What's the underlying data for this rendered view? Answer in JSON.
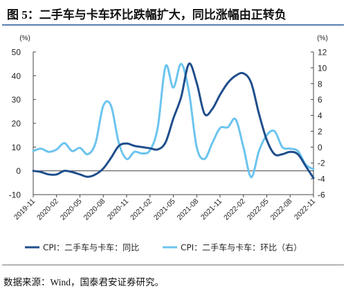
{
  "figure": {
    "title": "图 5：二手车与卡车环比跌幅扩大，同比涨幅由正转负",
    "source": "数据来源：Wind，国泰君安证券研究。"
  },
  "colors": {
    "series_yoy": "#1f4e8c",
    "series_mom": "#6cc4ee",
    "axis": "#444444",
    "title_rule": "#5b7fb0"
  },
  "chart_data": {
    "type": "line",
    "x": [
      "2019-11",
      "2019-12",
      "2020-01",
      "2020-02",
      "2020-03",
      "2020-04",
      "2020-05",
      "2020-06",
      "2020-07",
      "2020-08",
      "2020-09",
      "2020-10",
      "2020-11",
      "2020-12",
      "2021-01",
      "2021-02",
      "2021-03",
      "2021-04",
      "2021-05",
      "2021-06",
      "2021-07",
      "2021-08",
      "2021-09",
      "2021-10",
      "2021-11",
      "2021-12",
      "2022-01",
      "2022-02",
      "2022-03",
      "2022-04",
      "2022-05",
      "2022-06",
      "2022-07",
      "2022-08",
      "2022-09",
      "2022-10",
      "2022-11"
    ],
    "x_tick_labels": [
      "2019-11",
      "2020-02",
      "2020-05",
      "2020-08",
      "2020-11",
      "2021-02",
      "2021-05",
      "2021-08",
      "2021-11",
      "2022-02",
      "2022-05",
      "2022-08",
      "2022-11"
    ],
    "left_axis": {
      "unit": "(%)",
      "ylim": [
        -10,
        50
      ],
      "ticks": [
        -10,
        0,
        10,
        20,
        30,
        40,
        50
      ]
    },
    "right_axis": {
      "unit": "(%)",
      "ylim": [
        -6,
        12
      ],
      "ticks": [
        -6,
        -4,
        -2,
        0,
        2,
        4,
        6,
        8,
        10,
        12
      ]
    },
    "series": [
      {
        "name": "CPI：二手车与卡车：同比",
        "axis": "left",
        "values": [
          0,
          -0.5,
          -1.5,
          -1.5,
          0,
          -0.5,
          -1.5,
          -2.5,
          -1.5,
          1,
          5.5,
          10.5,
          11.5,
          10.5,
          10,
          9.5,
          9,
          12,
          22,
          31,
          45,
          37,
          24,
          26,
          32,
          37,
          40,
          41,
          37,
          24,
          13,
          7,
          7,
          8,
          7,
          2,
          -3
        ]
      },
      {
        "name": "CPI：二手车与卡车：环比（右）",
        "axis": "right",
        "values": [
          -0.5,
          -0.2,
          -0.6,
          -0.3,
          0.5,
          -0.5,
          -0.1,
          -0.9,
          0.5,
          5.2,
          5.2,
          0.5,
          -1.5,
          -0.6,
          -0.8,
          -0.4,
          2.5,
          10.2,
          7.5,
          10.5,
          7,
          0,
          -1.5,
          0.5,
          2.4,
          2.5,
          3.5,
          0,
          -3.8,
          -0.5,
          1.5,
          2,
          0,
          -0.2,
          -0.5,
          -2.2,
          -2.8
        ]
      }
    ],
    "grid": false,
    "legend": "bottom"
  }
}
